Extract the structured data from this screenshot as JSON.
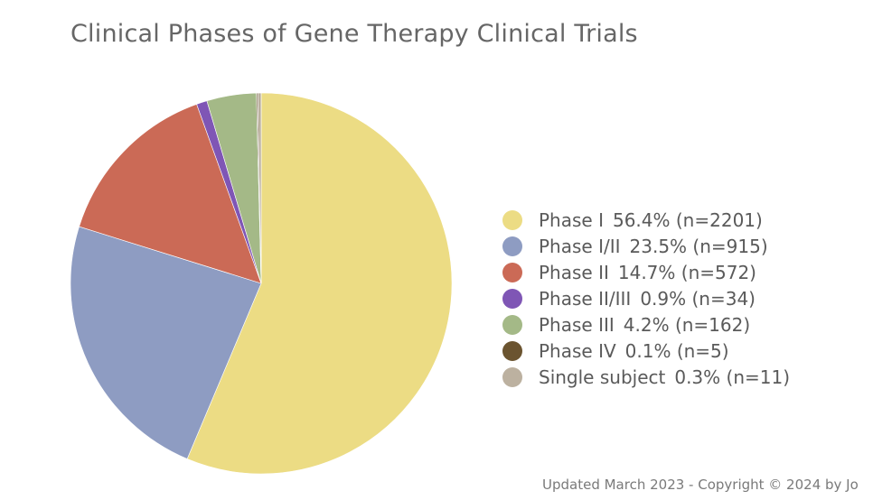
{
  "chart_data": {
    "type": "pie",
    "title": "Clinical Phases of Gene Therapy Clinical Trials",
    "legend_position": "right",
    "slices": [
      {
        "label": "Phase I",
        "percent_label": "56.4% (n=2201)",
        "percent": 56.4,
        "count": 2201,
        "color": "#ecdc84"
      },
      {
        "label": "Phase I/II",
        "percent_label": "23.5% (n=915)",
        "percent": 23.5,
        "count": 915,
        "color": "#8e9cc2"
      },
      {
        "label": "Phase II",
        "percent_label": "14.7% (n=572)",
        "percent": 14.7,
        "count": 572,
        "color": "#cb6a56"
      },
      {
        "label": "Phase II/III",
        "percent_label": "0.9% (n=34)",
        "percent": 0.9,
        "count": 34,
        "color": "#7f56b5"
      },
      {
        "label": "Phase III",
        "percent_label": "4.2% (n=162)",
        "percent": 4.2,
        "count": 162,
        "color": "#a4b987"
      },
      {
        "label": "Phase IV",
        "percent_label": "0.1% (n=5)",
        "percent": 0.1,
        "count": 5,
        "color": "#6b5430"
      },
      {
        "label": "Single subject",
        "percent_label": "0.3% (n=11)",
        "percent": 0.3,
        "count": 11,
        "color": "#bcb1a0"
      }
    ]
  },
  "footer": {
    "text": "Updated March 2023 - Copyright © 2024 by Jo"
  }
}
